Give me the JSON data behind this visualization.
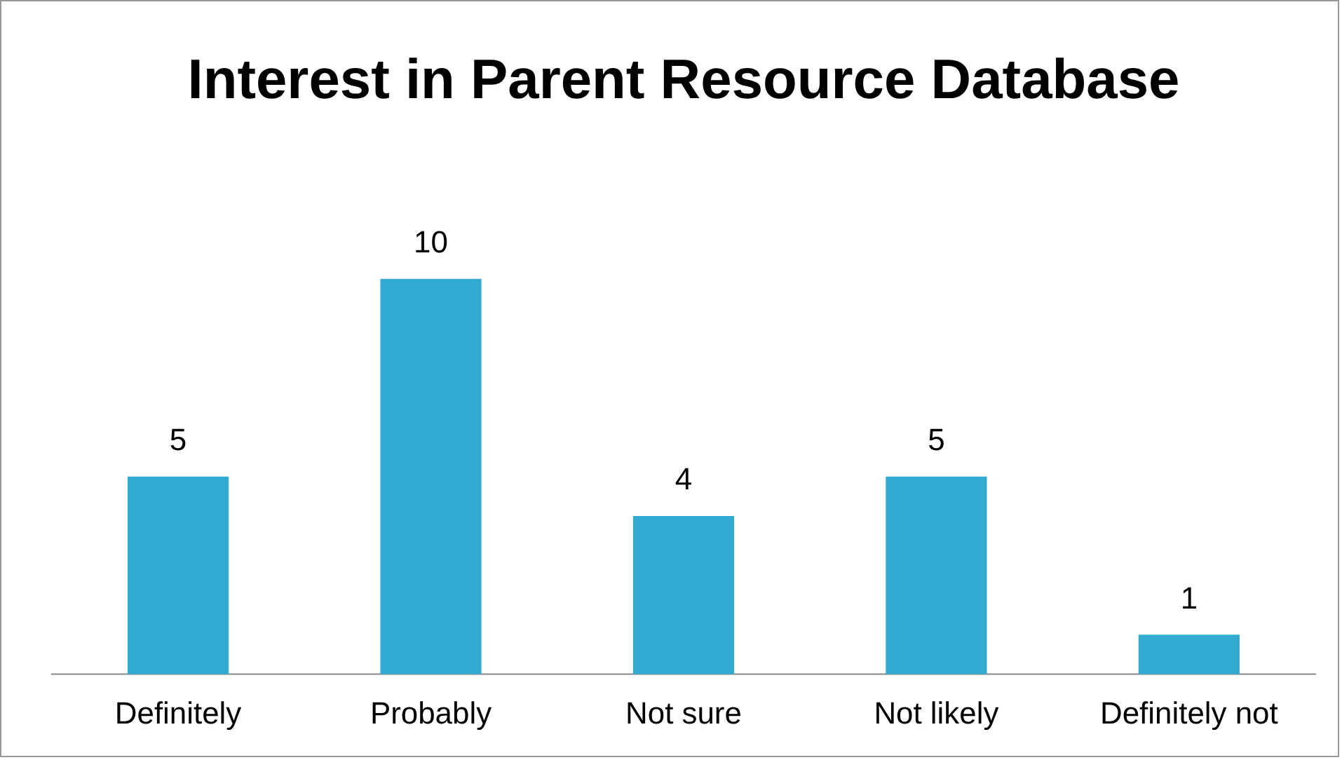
{
  "chart_data": {
    "type": "bar",
    "title": "Interest in Parent Resource Database",
    "categories": [
      "Definitely",
      "Probably",
      "Not sure",
      "Not likely",
      "Definitely not"
    ],
    "values": [
      5,
      10,
      4,
      5,
      1
    ],
    "color": "#33abd0",
    "data_labels": true,
    "grid": false,
    "legend": false
  }
}
